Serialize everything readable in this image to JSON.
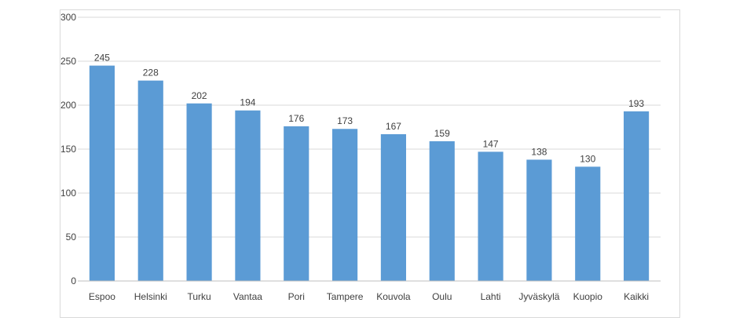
{
  "chart_data": {
    "type": "bar",
    "title": "",
    "xlabel": "",
    "ylabel": "",
    "categories": [
      "Espoo",
      "Helsinki",
      "Turku",
      "Vantaa",
      "Pori",
      "Tampere",
      "Kouvola",
      "Oulu",
      "Lahti",
      "Jyväskylä",
      "Kuopio",
      "Kaikki"
    ],
    "values": [
      245,
      228,
      202,
      194,
      176,
      173,
      167,
      159,
      147,
      138,
      130,
      193
    ],
    "ylim": [
      0,
      300
    ],
    "yticks": [
      0,
      50,
      100,
      150,
      200,
      250,
      300
    ],
    "grid": true,
    "legend": "none",
    "colors": {
      "bar": "#5b9bd5",
      "grid": "#d9d9d9",
      "axis": "#bfbfbf",
      "text": "#404040"
    }
  }
}
